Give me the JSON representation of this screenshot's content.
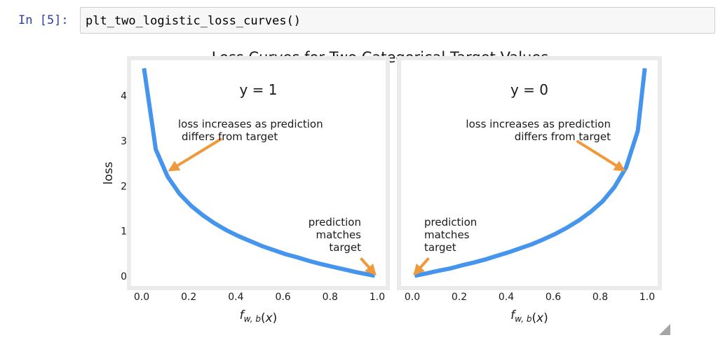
{
  "cell": {
    "prompt": "In [5]:",
    "code": "plt_two_logistic_loss_curves()"
  },
  "figure": {
    "title": "Loss Curves for Two Categorical Target Values",
    "line_color": "#4595ee",
    "arrow_color": "#ee9a3c"
  },
  "chart_data": [
    {
      "type": "line",
      "title": "y = 1",
      "xlabel": "f_{w,b}(x)",
      "ylabel": "loss",
      "xlim": [
        0.0,
        1.0
      ],
      "ylim": [
        0,
        4.6
      ],
      "xticks": [
        0.0,
        0.2,
        0.4,
        0.6,
        0.8,
        1.0
      ],
      "xtick_labels": [
        "0.0",
        "0.2",
        "0.4",
        "0.6",
        "0.8",
        "1.0"
      ],
      "yticks": [
        0,
        1,
        2,
        3,
        4
      ],
      "ytick_labels": [
        "0",
        "1",
        "2",
        "3",
        "4"
      ],
      "grid": false,
      "series": [
        {
          "x": [
            0.01,
            0.06,
            0.11,
            0.16,
            0.21,
            0.26,
            0.31,
            0.36,
            0.41,
            0.46,
            0.51,
            0.56,
            0.61,
            0.66,
            0.71,
            0.76,
            0.81,
            0.86,
            0.91,
            0.96,
            0.99
          ],
          "y": [
            4.61,
            2.81,
            2.21,
            1.83,
            1.56,
            1.35,
            1.17,
            1.02,
            0.89,
            0.78,
            0.67,
            0.58,
            0.49,
            0.42,
            0.34,
            0.27,
            0.21,
            0.15,
            0.09,
            0.04,
            0.01
          ]
        }
      ],
      "annotations": [
        {
          "text": [
            "loss increases as prediction",
            "differs from target"
          ],
          "arrow_from": [
            0.34,
            3.05
          ],
          "arrow_to": [
            0.12,
            2.35
          ]
        },
        {
          "text": [
            "prediction",
            "matches",
            "target"
          ],
          "arrow_from": [
            0.93,
            0.4
          ],
          "arrow_to": [
            0.99,
            0.05
          ]
        }
      ]
    },
    {
      "type": "line",
      "title": "y = 0",
      "xlabel": "f_{w,b}(x)",
      "ylabel": "",
      "xlim": [
        0.0,
        1.0
      ],
      "ylim": [
        0,
        4.6
      ],
      "xticks": [
        0.0,
        0.2,
        0.4,
        0.6,
        0.8,
        1.0
      ],
      "xtick_labels": [
        "0.0",
        "0.2",
        "0.4",
        "0.6",
        "0.8",
        "1.0"
      ],
      "yticks": [],
      "ytick_labels": [],
      "grid": false,
      "series": [
        {
          "x": [
            0.01,
            0.06,
            0.11,
            0.16,
            0.21,
            0.26,
            0.31,
            0.36,
            0.41,
            0.46,
            0.51,
            0.56,
            0.61,
            0.66,
            0.71,
            0.76,
            0.81,
            0.86,
            0.91,
            0.96,
            0.99
          ],
          "y": [
            0.01,
            0.06,
            0.12,
            0.17,
            0.24,
            0.3,
            0.37,
            0.45,
            0.53,
            0.62,
            0.71,
            0.82,
            0.94,
            1.08,
            1.24,
            1.43,
            1.66,
            1.97,
            2.41,
            3.22,
            4.61
          ]
        }
      ],
      "annotations": [
        {
          "text": [
            "loss increases as prediction",
            "differs from target"
          ],
          "arrow_from": [
            0.7,
            3.0
          ],
          "arrow_to": [
            0.9,
            2.35
          ]
        },
        {
          "text": [
            "prediction",
            "matches",
            "target"
          ],
          "arrow_from": [
            0.07,
            0.4
          ],
          "arrow_to": [
            0.01,
            0.05
          ]
        }
      ]
    }
  ]
}
